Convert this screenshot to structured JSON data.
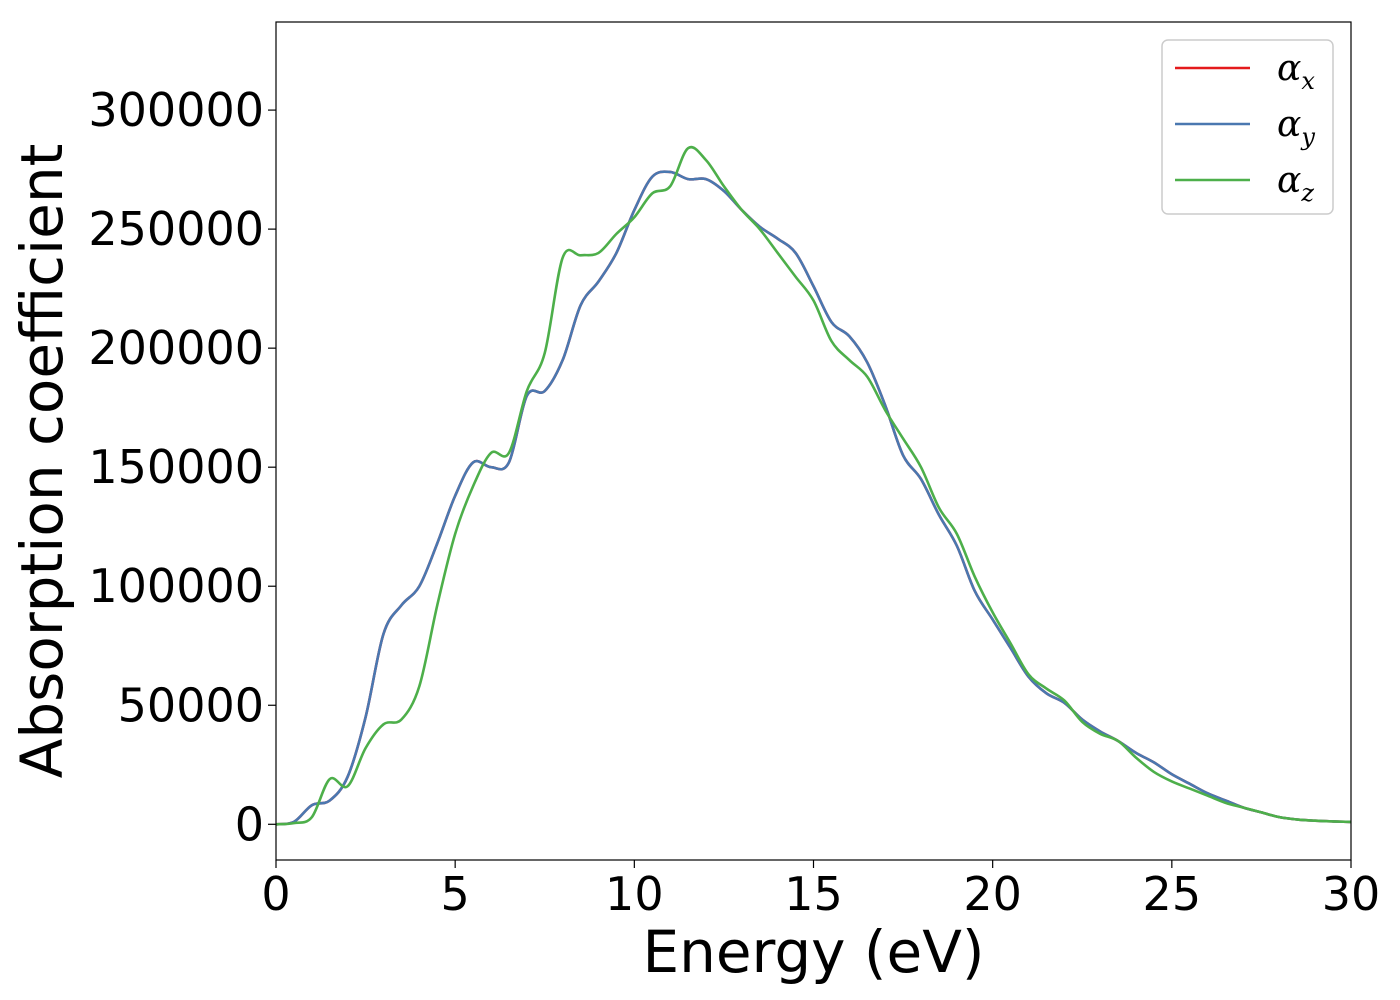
{
  "chart_data": {
    "type": "line",
    "title": "",
    "xlabel": "Energy (eV)",
    "ylabel": "Absorption coefficient",
    "xlim": [
      0,
      30
    ],
    "ylim": [
      -15000,
      337000
    ],
    "xticks": [
      0,
      5,
      10,
      15,
      20,
      25,
      30
    ],
    "xtick_labels": [
      "0",
      "5",
      "10",
      "15",
      "20",
      "25",
      "30"
    ],
    "yticks": [
      0,
      50000,
      100000,
      150000,
      200000,
      250000,
      300000
    ],
    "ytick_labels": [
      "0",
      "50000",
      "100000",
      "150000",
      "200000",
      "250000",
      "300000"
    ],
    "grid": false,
    "legend_position": "top-right",
    "x": [
      0,
      0.5,
      1.0,
      1.5,
      2.0,
      2.5,
      3.0,
      3.5,
      4.0,
      4.5,
      5.0,
      5.5,
      6.0,
      6.5,
      7.0,
      7.5,
      8.0,
      8.5,
      9.0,
      9.5,
      10.0,
      10.5,
      11.0,
      11.5,
      12.0,
      12.5,
      13.0,
      13.5,
      14.0,
      14.5,
      15.0,
      15.5,
      16.0,
      16.5,
      17.0,
      17.5,
      18.0,
      18.5,
      19.0,
      19.5,
      20.0,
      20.5,
      21.0,
      21.5,
      22.0,
      22.5,
      23.0,
      23.5,
      24.0,
      24.5,
      25.0,
      25.5,
      26.0,
      26.5,
      27.0,
      27.5,
      28.0,
      28.5,
      29.0,
      29.5,
      30.0
    ],
    "series": [
      {
        "name": "α",
        "subscript": "x",
        "color": "#e41a1c",
        "values": [
          0,
          1000,
          8000,
          10000,
          20000,
          45000,
          80000,
          92000,
          100000,
          118000,
          138000,
          152000,
          150000,
          152000,
          180000,
          182000,
          195000,
          218000,
          228000,
          240000,
          258000,
          272000,
          274000,
          271000,
          271000,
          266000,
          258000,
          251000,
          246000,
          240000,
          226000,
          211000,
          205000,
          194000,
          176000,
          155000,
          145000,
          130000,
          117000,
          98000,
          86000,
          74000,
          62000,
          55000,
          51000,
          44000,
          39000,
          35000,
          30000,
          26000,
          21000,
          17000,
          13000,
          10000,
          7000,
          5000,
          3000,
          2000,
          1500,
          1200,
          1000
        ]
      },
      {
        "name": "α",
        "subscript": "y",
        "color": "#4a78b0",
        "values": [
          0,
          1000,
          8000,
          10000,
          20000,
          45000,
          80000,
          92000,
          100000,
          118000,
          138000,
          152000,
          150000,
          152000,
          180000,
          182000,
          195000,
          218000,
          228000,
          240000,
          258000,
          272000,
          274000,
          271000,
          271000,
          266000,
          258000,
          251000,
          246000,
          240000,
          226000,
          211000,
          205000,
          194000,
          176000,
          155000,
          145000,
          130000,
          117000,
          98000,
          86000,
          74000,
          62000,
          55000,
          51000,
          44000,
          39000,
          35000,
          30000,
          26000,
          21000,
          17000,
          13000,
          10000,
          7000,
          5000,
          3000,
          2000,
          1500,
          1200,
          1000
        ]
      },
      {
        "name": "α",
        "subscript": "z",
        "color": "#4daf4a",
        "values": [
          0,
          500,
          3000,
          19000,
          16000,
          32000,
          42000,
          44000,
          58000,
          92000,
          122000,
          142000,
          156000,
          156000,
          182000,
          198000,
          238000,
          239000,
          240000,
          248000,
          255000,
          265000,
          268000,
          284000,
          279000,
          268000,
          258000,
          250000,
          240000,
          230000,
          220000,
          203000,
          195000,
          188000,
          174000,
          162000,
          150000,
          133000,
          122000,
          104000,
          89000,
          76000,
          63000,
          57000,
          52000,
          43000,
          38000,
          35000,
          28000,
          22000,
          18000,
          15000,
          12000,
          9000,
          7000,
          5000,
          3000,
          2000,
          1500,
          1200,
          1000
        ]
      }
    ]
  }
}
